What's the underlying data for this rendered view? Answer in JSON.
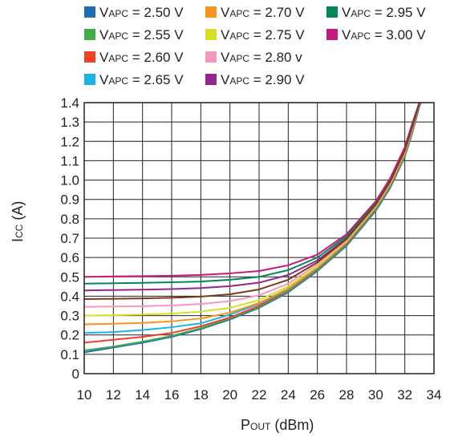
{
  "chart_data": {
    "type": "line",
    "title": "",
    "xlabel": {
      "main": "P",
      "sub": "OUT",
      "suffix": " (dBm)"
    },
    "ylabel": {
      "main": "I",
      "sub": "CC",
      "suffix": " (A)"
    },
    "xlim": [
      10,
      34
    ],
    "ylim": [
      0,
      1.4
    ],
    "xticks": [
      10,
      12,
      14,
      16,
      18,
      20,
      22,
      24,
      26,
      28,
      30,
      32,
      34
    ],
    "yticks": [
      0,
      0.1,
      0.2,
      0.3,
      0.4,
      0.5,
      0.6,
      0.7,
      0.8,
      0.9,
      1.0,
      1.1,
      1.2,
      1.3,
      1.4
    ],
    "ytick_labels": [
      "0",
      "0.1",
      "0.2",
      "0.3",
      "0.4",
      "0.5",
      "0.6",
      "0.7",
      "0.8",
      "0.9",
      "1.0",
      "1.1",
      "1.2",
      "1.3",
      "1.4"
    ],
    "grid": true,
    "legend_position": "top",
    "series": [
      {
        "label_main": "V",
        "label_sub": "APC",
        "label_value": " = 2.50 V",
        "color": "#1f6db5",
        "points": [
          [
            10,
            0.11
          ],
          [
            12,
            0.135
          ],
          [
            14,
            0.16
          ],
          [
            16,
            0.19
          ],
          [
            18,
            0.23
          ],
          [
            20,
            0.28
          ],
          [
            22,
            0.34
          ],
          [
            24,
            0.42
          ],
          [
            26,
            0.53
          ],
          [
            28,
            0.66
          ],
          [
            30,
            0.84
          ],
          [
            31,
            0.96
          ],
          [
            32,
            1.12
          ],
          [
            32.5,
            1.24
          ],
          [
            33,
            1.38
          ],
          [
            33.1,
            1.4
          ]
        ]
      },
      {
        "label_main": "V",
        "label_sub": "APC",
        "label_value": " = 2.55 V",
        "color": "#3fae49",
        "points": [
          [
            10,
            0.12
          ],
          [
            12,
            0.14
          ],
          [
            14,
            0.165
          ],
          [
            16,
            0.195
          ],
          [
            18,
            0.235
          ],
          [
            20,
            0.285
          ],
          [
            22,
            0.345
          ],
          [
            24,
            0.425
          ],
          [
            26,
            0.535
          ],
          [
            28,
            0.665
          ],
          [
            30,
            0.845
          ],
          [
            31,
            0.965
          ],
          [
            32,
            1.125
          ],
          [
            32.5,
            1.245
          ],
          [
            33,
            1.385
          ],
          [
            33.1,
            1.4
          ]
        ]
      },
      {
        "label_main": "V",
        "label_sub": "APC",
        "label_value": " = 2.60 V",
        "color": "#ef4123",
        "points": [
          [
            10,
            0.16
          ],
          [
            12,
            0.175
          ],
          [
            14,
            0.19
          ],
          [
            16,
            0.21
          ],
          [
            18,
            0.245
          ],
          [
            20,
            0.29
          ],
          [
            22,
            0.35
          ],
          [
            24,
            0.43
          ],
          [
            26,
            0.54
          ],
          [
            28,
            0.67
          ],
          [
            30,
            0.85
          ],
          [
            31,
            0.97
          ],
          [
            32,
            1.13
          ],
          [
            32.5,
            1.25
          ],
          [
            33,
            1.39
          ],
          [
            33.1,
            1.4
          ]
        ]
      },
      {
        "label_main": "V",
        "label_sub": "APC",
        "label_value": " = 2.65 V",
        "color": "#1ab3e6",
        "points": [
          [
            10,
            0.21
          ],
          [
            12,
            0.215
          ],
          [
            14,
            0.225
          ],
          [
            16,
            0.24
          ],
          [
            18,
            0.26
          ],
          [
            20,
            0.305
          ],
          [
            22,
            0.36
          ],
          [
            24,
            0.435
          ],
          [
            26,
            0.545
          ],
          [
            28,
            0.675
          ],
          [
            30,
            0.855
          ],
          [
            31,
            0.975
          ],
          [
            32,
            1.135
          ],
          [
            32.5,
            1.255
          ],
          [
            33,
            1.395
          ],
          [
            33.1,
            1.4
          ]
        ]
      },
      {
        "label_main": "V",
        "label_sub": "APC",
        "label_value": " = 2.70 V",
        "color": "#f7941d",
        "points": [
          [
            10,
            0.255
          ],
          [
            12,
            0.258
          ],
          [
            14,
            0.262
          ],
          [
            16,
            0.27
          ],
          [
            18,
            0.285
          ],
          [
            20,
            0.315
          ],
          [
            22,
            0.365
          ],
          [
            24,
            0.44
          ],
          [
            26,
            0.55
          ],
          [
            28,
            0.68
          ],
          [
            30,
            0.86
          ],
          [
            31,
            0.98
          ],
          [
            32,
            1.14
          ],
          [
            32.5,
            1.26
          ],
          [
            33,
            1.4
          ]
        ]
      },
      {
        "label_main": "V",
        "label_sub": "APC",
        "label_value": " = 2.75 V",
        "color": "#d7df23",
        "points": [
          [
            10,
            0.3
          ],
          [
            12,
            0.302
          ],
          [
            14,
            0.305
          ],
          [
            16,
            0.31
          ],
          [
            18,
            0.32
          ],
          [
            20,
            0.34
          ],
          [
            22,
            0.38
          ],
          [
            24,
            0.45
          ],
          [
            26,
            0.555
          ],
          [
            28,
            0.685
          ],
          [
            30,
            0.865
          ],
          [
            31,
            0.985
          ],
          [
            32,
            1.145
          ],
          [
            32.5,
            1.265
          ],
          [
            33,
            1.4
          ]
        ]
      },
      {
        "label_main": "V",
        "label_sub": "APC",
        "label_value": " = 2.80 v",
        "color": "#f49ac1",
        "points": [
          [
            10,
            0.345
          ],
          [
            12,
            0.347
          ],
          [
            14,
            0.349
          ],
          [
            16,
            0.352
          ],
          [
            18,
            0.36
          ],
          [
            20,
            0.375
          ],
          [
            22,
            0.405
          ],
          [
            24,
            0.465
          ],
          [
            26,
            0.565
          ],
          [
            28,
            0.69
          ],
          [
            30,
            0.87
          ],
          [
            31,
            0.99
          ],
          [
            32,
            1.15
          ],
          [
            32.5,
            1.27
          ],
          [
            33,
            1.4
          ]
        ]
      },
      {
        "label_main": "V",
        "label_sub": "APC",
        "label_value": " = 2.90 V",
        "color": "#92278f",
        "points": [
          [
            10,
            0.43
          ],
          [
            12,
            0.432
          ],
          [
            14,
            0.434
          ],
          [
            16,
            0.437
          ],
          [
            18,
            0.442
          ],
          [
            20,
            0.452
          ],
          [
            22,
            0.47
          ],
          [
            24,
            0.51
          ],
          [
            26,
            0.585
          ],
          [
            28,
            0.7
          ],
          [
            30,
            0.875
          ],
          [
            31,
            0.995
          ],
          [
            32,
            1.155
          ],
          [
            32.5,
            1.275
          ],
          [
            33,
            1.4
          ]
        ]
      },
      {
        "label_main": "V",
        "label_sub": "APC",
        "label_value": " = 2.95 V",
        "color": "#00875a",
        "points": [
          [
            10,
            0.465
          ],
          [
            12,
            0.467
          ],
          [
            14,
            0.469
          ],
          [
            16,
            0.472
          ],
          [
            18,
            0.476
          ],
          [
            20,
            0.485
          ],
          [
            22,
            0.5
          ],
          [
            24,
            0.535
          ],
          [
            26,
            0.6
          ],
          [
            28,
            0.71
          ],
          [
            30,
            0.88
          ],
          [
            31,
            1.0
          ],
          [
            32,
            1.16
          ],
          [
            32.5,
            1.28
          ],
          [
            33,
            1.4
          ]
        ]
      },
      {
        "label_main": "V",
        "label_sub": "APC",
        "label_value": " = 3.00 V",
        "color": "#c6197d",
        "points": [
          [
            10,
            0.5
          ],
          [
            12,
            0.502
          ],
          [
            14,
            0.504
          ],
          [
            16,
            0.506
          ],
          [
            18,
            0.51
          ],
          [
            20,
            0.518
          ],
          [
            22,
            0.53
          ],
          [
            24,
            0.56
          ],
          [
            26,
            0.615
          ],
          [
            28,
            0.72
          ],
          [
            30,
            0.89
          ],
          [
            31,
            1.01
          ],
          [
            32,
            1.17
          ],
          [
            32.5,
            1.29
          ],
          [
            33,
            1.4
          ]
        ]
      },
      {
        "label_main": null,
        "label_sub": null,
        "label_value": null,
        "color": "#7a3b1a",
        "points": [
          [
            10,
            0.385
          ],
          [
            12,
            0.387
          ],
          [
            14,
            0.389
          ],
          [
            16,
            0.392
          ],
          [
            18,
            0.398
          ],
          [
            20,
            0.41
          ],
          [
            22,
            0.435
          ],
          [
            24,
            0.485
          ],
          [
            26,
            0.575
          ],
          [
            28,
            0.695
          ],
          [
            30,
            0.872
          ],
          [
            31,
            0.992
          ],
          [
            32,
            1.152
          ],
          [
            32.5,
            1.272
          ],
          [
            33,
            1.4
          ]
        ]
      }
    ]
  }
}
